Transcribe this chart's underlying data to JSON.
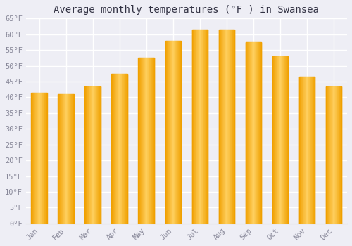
{
  "title": "Average monthly temperatures (°F ) in Swansea",
  "months": [
    "Jan",
    "Feb",
    "Mar",
    "Apr",
    "May",
    "Jun",
    "Jul",
    "Aug",
    "Sep",
    "Oct",
    "Nov",
    "Dec"
  ],
  "values": [
    41.5,
    41.0,
    43.5,
    47.5,
    52.5,
    58.0,
    61.5,
    61.5,
    57.5,
    53.0,
    46.5,
    43.5
  ],
  "bar_color_center": "#FFD060",
  "bar_color_edge": "#F0A000",
  "background_color": "#EEEEF5",
  "plot_bg_color": "#EEEEF5",
  "grid_color": "#FFFFFF",
  "text_color": "#888899",
  "title_color": "#333344",
  "ylim": [
    0,
    65
  ],
  "yticks": [
    0,
    5,
    10,
    15,
    20,
    25,
    30,
    35,
    40,
    45,
    50,
    55,
    60,
    65
  ],
  "title_fontsize": 10,
  "tick_fontsize": 7.5,
  "font_family": "monospace",
  "bar_width": 0.6
}
